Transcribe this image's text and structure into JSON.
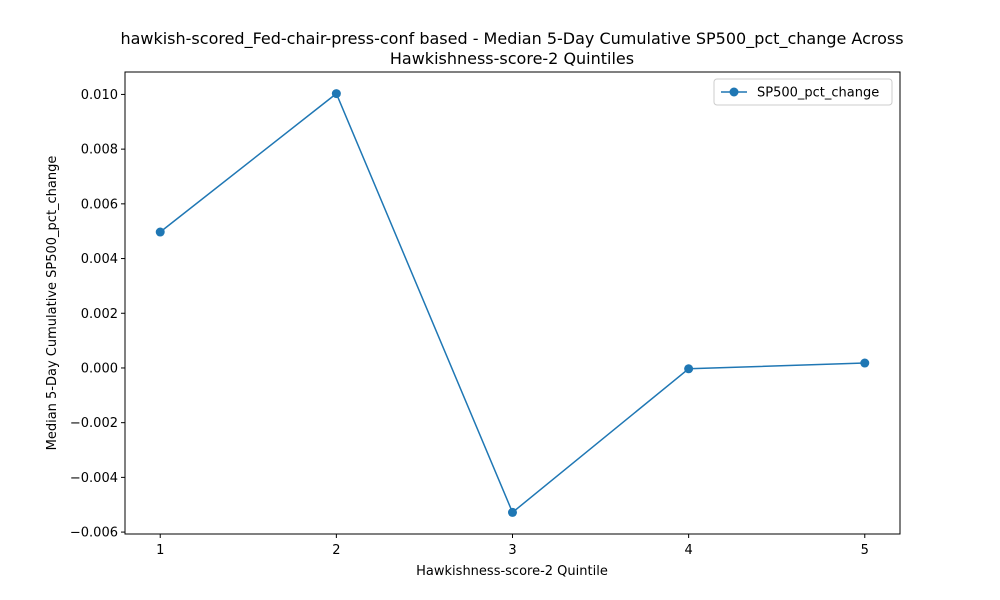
{
  "chart_data": {
    "type": "line",
    "title_line1": "hawkish-scored_Fed-chair-press-conf based - Median 5-Day Cumulative SP500_pct_change Across",
    "title_line2": "Hawkishness-score-2 Quintiles",
    "xlabel": "Hawkishness-score-2 Quintile",
    "ylabel": "Median 5-Day Cumulative SP500_pct_change",
    "x": [
      1,
      2,
      3,
      4,
      5
    ],
    "x_tick_labels": [
      "1",
      "2",
      "3",
      "4",
      "5"
    ],
    "xlim": [
      0.8,
      5.2
    ],
    "ylim": [
      -0.00607,
      0.01082
    ],
    "y_ticks": [
      -0.006,
      -0.004,
      -0.002,
      0.0,
      0.002,
      0.004,
      0.006,
      0.008,
      0.01
    ],
    "y_tick_labels": [
      "−0.006",
      "−0.004",
      "−0.002",
      "0.000",
      "0.002",
      "0.004",
      "0.006",
      "0.008",
      "0.010"
    ],
    "grid": false,
    "legend_position": "top-right",
    "series": [
      {
        "name": "SP500_pct_change",
        "color": "#1f77b4",
        "marker": "circle",
        "values": [
          0.00497,
          0.01003,
          -0.00528,
          -3e-05,
          0.00018
        ]
      }
    ]
  }
}
